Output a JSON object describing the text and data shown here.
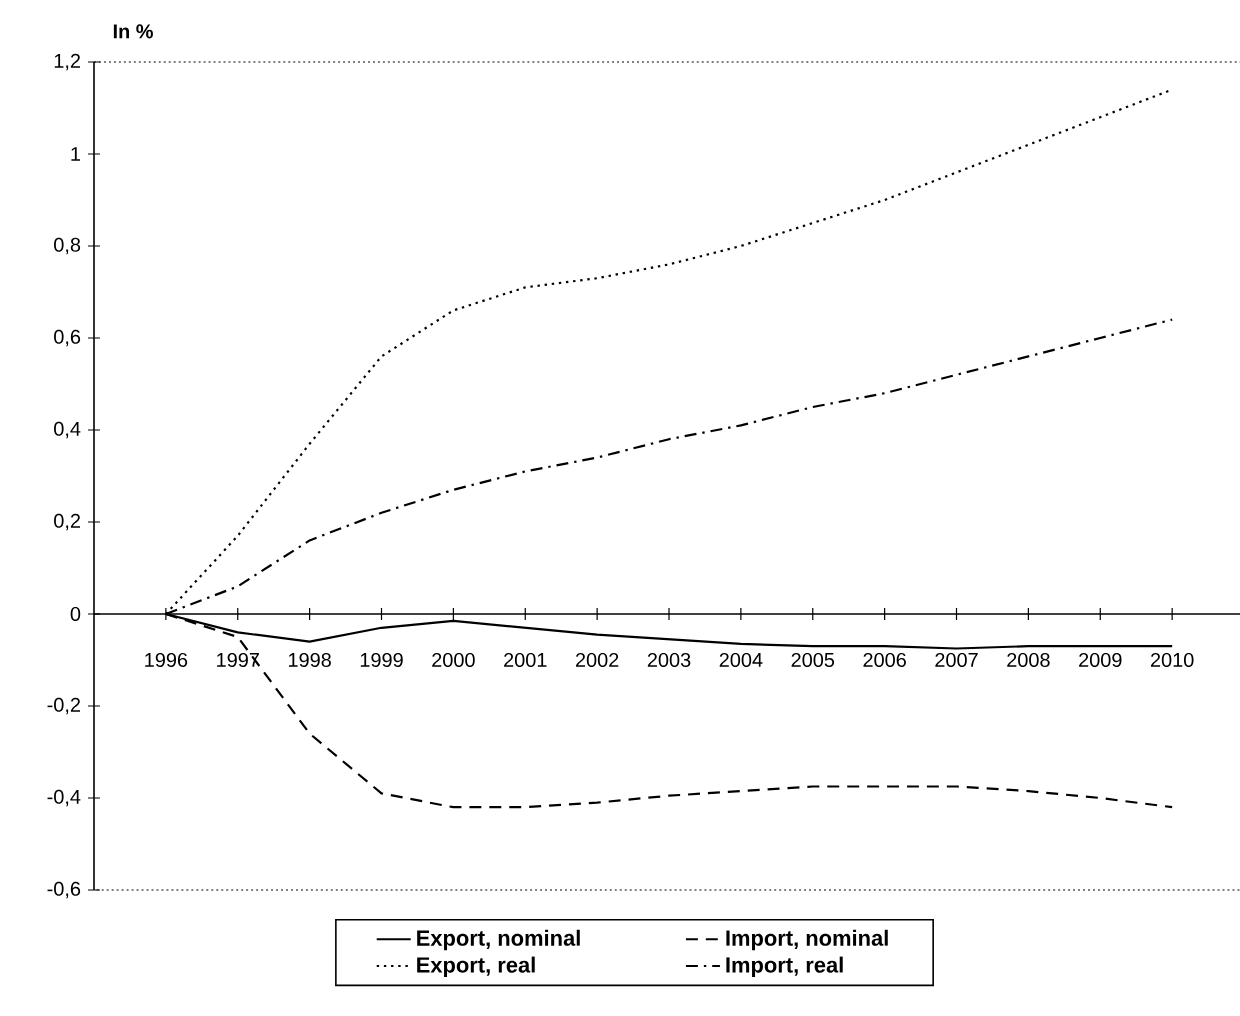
{
  "chart_data": {
    "type": "line",
    "ylabel": "In %",
    "categories": [
      "1996",
      "1997",
      "1998",
      "1999",
      "2000",
      "2001",
      "2002",
      "2003",
      "2004",
      "2005",
      "2006",
      "2007",
      "2008",
      "2009",
      "2010"
    ],
    "series": [
      {
        "name": "Export, nominal",
        "color": "#000000",
        "line_style": "solid",
        "values": [
          0,
          -0.04,
          -0.06,
          -0.03,
          -0.015,
          -0.03,
          -0.045,
          -0.055,
          -0.065,
          -0.07,
          -0.07,
          -0.075,
          -0.07,
          -0.07,
          -0.07
        ]
      },
      {
        "name": "Import, nominal",
        "color": "#000000",
        "line_style": "dashed",
        "values": [
          0,
          -0.05,
          -0.26,
          -0.39,
          -0.42,
          -0.42,
          -0.41,
          -0.395,
          -0.385,
          -0.375,
          -0.375,
          -0.375,
          -0.385,
          -0.4,
          -0.42
        ]
      },
      {
        "name": "Export, real",
        "color": "#000000",
        "line_style": "dotted",
        "values": [
          0,
          0.17,
          0.37,
          0.56,
          0.66,
          0.71,
          0.73,
          0.76,
          0.8,
          0.85,
          0.9,
          0.96,
          1.02,
          1.08,
          1.14
        ]
      },
      {
        "name": "Import, real",
        "color": "#000000",
        "line_style": "dashdot",
        "values": [
          0,
          0.06,
          0.16,
          0.22,
          0.27,
          0.31,
          0.34,
          0.38,
          0.41,
          0.45,
          0.48,
          0.52,
          0.56,
          0.6,
          0.64
        ]
      }
    ],
    "ylim": [
      -0.6,
      1.2
    ],
    "yticks": [
      {
        "value": -0.6,
        "label": "-0,6"
      },
      {
        "value": -0.4,
        "label": "-0,4"
      },
      {
        "value": -0.2,
        "label": "-0,2"
      },
      0,
      {
        "value": 0.2,
        "label": "0,2"
      },
      {
        "value": 0.4,
        "label": "0,4"
      },
      {
        "value": 0.6,
        "label": "0,6"
      },
      {
        "value": 0.8,
        "label": "0,8"
      },
      1,
      {
        "value": 1.2,
        "label": "1,2"
      }
    ],
    "grid": false,
    "legend": "bottom",
    "marker": "none"
  }
}
